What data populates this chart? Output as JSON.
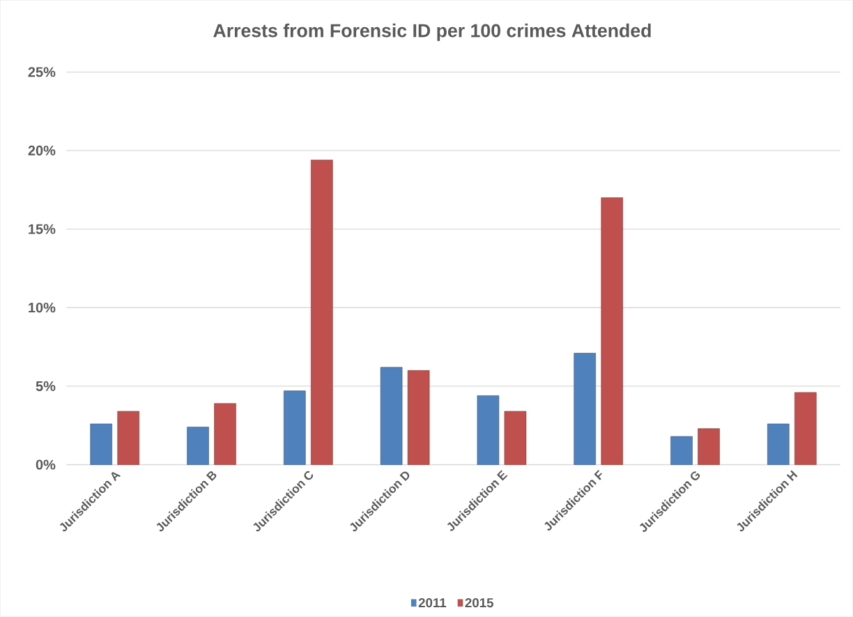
{
  "chart_data": {
    "type": "bar",
    "title": "Arrests from Forensic ID per 100 crimes Attended",
    "categories": [
      "Jurisdiction A",
      "Jurisdiction B",
      "Jurisdiction C",
      "Jurisdiction D",
      "Jurisdiction E",
      "Jurisdiction F",
      "Jurisdiction G",
      "Jurisdiction H"
    ],
    "series": [
      {
        "name": "2011",
        "color": "#4f81bd",
        "values": [
          2.6,
          2.4,
          4.7,
          6.2,
          4.4,
          7.1,
          1.8,
          2.6
        ]
      },
      {
        "name": "2015",
        "color": "#c0504d",
        "values": [
          3.4,
          3.9,
          19.4,
          6.0,
          3.4,
          17.0,
          2.3,
          4.6
        ]
      }
    ],
    "ylim": [
      0,
      25
    ],
    "yticks": [
      {
        "value": 0,
        "label": "0%"
      },
      {
        "value": 5,
        "label": "5%"
      },
      {
        "value": 10,
        "label": "10%"
      },
      {
        "value": 15,
        "label": "15%"
      },
      {
        "value": 20,
        "label": "20%"
      },
      {
        "value": 25,
        "label": "25%"
      }
    ],
    "grid": "y",
    "legend": "bottom"
  }
}
